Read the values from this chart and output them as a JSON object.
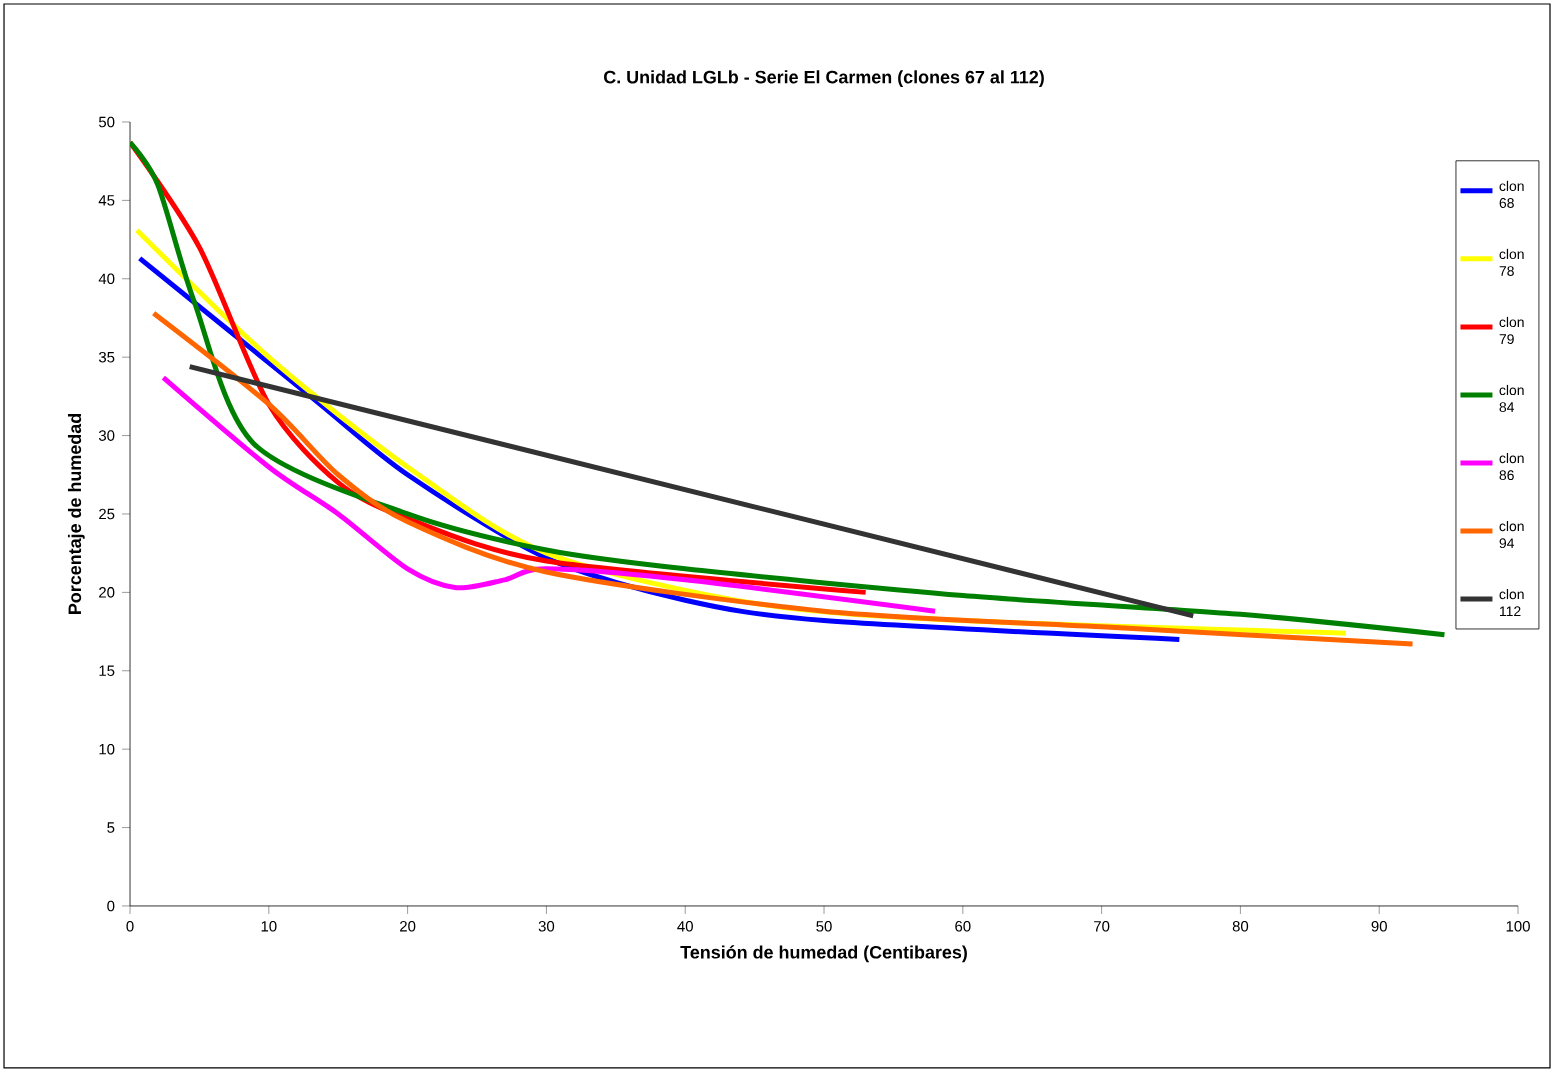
{
  "chart_data": {
    "type": "line",
    "title": "C.  Unidad LGLb - Serie El Carmen   (clones 67 al 112)",
    "xlabel": "Tensión de humedad (Centibares)",
    "ylabel": "Porcentaje de humedad",
    "xlim": [
      0,
      100
    ],
    "xticks": [
      0,
      10,
      20,
      30,
      40,
      50,
      60,
      70,
      80,
      90,
      100
    ],
    "ylim": [
      0,
      50
    ],
    "yticks": [
      0,
      5,
      10,
      15,
      20,
      25,
      30,
      35,
      40,
      45,
      50
    ],
    "grid": false,
    "legend": "right",
    "marker": "none",
    "line_style": "solid",
    "series": [
      {
        "name": "clon 68",
        "color": "#0000ff",
        "x": [
          0.7,
          13,
          20,
          30,
          40,
          50,
          75.6
        ],
        "values": [
          41.3,
          32.5,
          27.5,
          22.2,
          19.5,
          18.2,
          17.0
        ]
      },
      {
        "name": "clon 78",
        "color": "#ffff00",
        "x": [
          0.5,
          10,
          20,
          30,
          45,
          60,
          87.6
        ],
        "values": [
          43.1,
          35,
          28,
          22.5,
          19.3,
          18.2,
          17.4
        ]
      },
      {
        "name": "clon 79",
        "color": "#ff0000",
        "x": [
          0,
          5,
          10,
          15,
          20,
          30,
          53
        ],
        "values": [
          48.7,
          42,
          32,
          27,
          24.7,
          22,
          20.0
        ]
      },
      {
        "name": "clon 84",
        "color": "#008000",
        "x": [
          0,
          2,
          4.6,
          8.9,
          20,
          30,
          40,
          60,
          80,
          94.7
        ],
        "values": [
          48.7,
          46,
          38.6,
          29.5,
          25,
          22.7,
          21.5,
          19.8,
          18.6,
          17.3
        ]
      },
      {
        "name": "clon 86",
        "color": "#ff00ff",
        "x": [
          2.4,
          10,
          15,
          20,
          23.5,
          27,
          30,
          40,
          58
        ],
        "values": [
          33.7,
          28,
          25,
          21.5,
          20.3,
          20.8,
          21.5,
          20.8,
          18.8
        ]
      },
      {
        "name": "clon 94",
        "color": "#ff6600",
        "x": [
          1.7,
          10,
          15,
          20,
          30,
          50,
          70,
          92.4
        ],
        "values": [
          37.8,
          32,
          27.5,
          24.5,
          21.3,
          18.8,
          17.8,
          16.7
        ]
      },
      {
        "name": "clon 112",
        "color": "#333333",
        "x": [
          4.3,
          76.6
        ],
        "values": [
          34.4,
          18.5
        ]
      }
    ]
  }
}
